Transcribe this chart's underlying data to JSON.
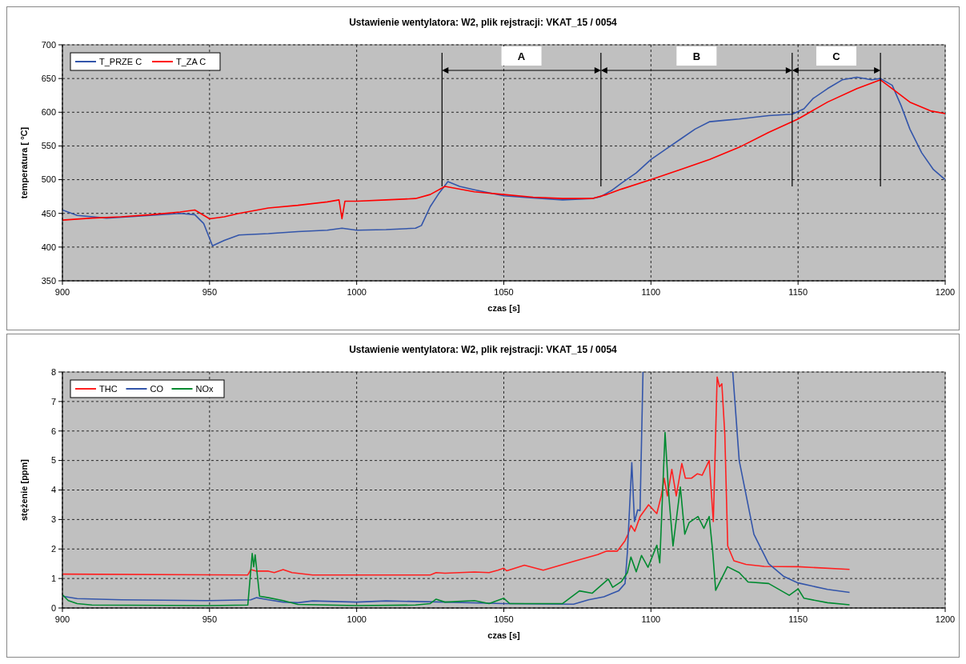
{
  "chart_data": [
    {
      "type": "line",
      "title": "Ustawienie wentylatora: W2, plik rejstracji: VKAT_15 / 0054",
      "xlabel": "czas [s]",
      "ylabel": "temperatura [ °C]",
      "xlim": [
        900,
        1200
      ],
      "xticks": [
        900,
        950,
        1000,
        1050,
        1100,
        1150,
        1200
      ],
      "ylim": [
        350,
        700
      ],
      "yticks": [
        350,
        400,
        450,
        500,
        550,
        600,
        650,
        700
      ],
      "grid": true,
      "legend": "top left",
      "line_style": "solid",
      "marker": "none",
      "ref_lines": [
        {
          "axis": "x",
          "value": 1029
        },
        {
          "axis": "x",
          "value": 1083
        },
        {
          "axis": "x",
          "value": 1148
        },
        {
          "axis": "x",
          "value": 1178
        }
      ],
      "annotations": [
        "A",
        "B",
        "C"
      ],
      "series": [
        {
          "name": "T_PRZE C",
          "color": "#3355aa",
          "x": [
            900,
            905,
            915,
            930,
            940,
            945,
            948,
            951,
            955,
            960,
            970,
            980,
            990,
            995,
            1000,
            1010,
            1020,
            1022,
            1025,
            1028,
            1031,
            1035,
            1040,
            1050,
            1060,
            1070,
            1080,
            1083,
            1087,
            1090,
            1095,
            1100,
            1105,
            1110,
            1115,
            1120,
            1125,
            1130,
            1140,
            1148,
            1152,
            1155,
            1160,
            1165,
            1170,
            1175,
            1178,
            1182,
            1185,
            1188,
            1192,
            1196,
            1200
          ],
          "values": [
            455,
            447,
            443,
            447,
            450,
            448,
            435,
            402,
            410,
            418,
            420,
            423,
            425,
            428,
            425,
            426,
            428,
            432,
            460,
            480,
            497,
            490,
            485,
            476,
            473,
            470,
            472,
            475,
            485,
            495,
            510,
            530,
            545,
            560,
            575,
            586,
            588,
            590,
            595,
            597,
            605,
            620,
            635,
            648,
            652,
            648,
            650,
            640,
            610,
            575,
            540,
            515,
            500
          ]
        },
        {
          "name": "T_ZA C",
          "color": "#ff0000",
          "x": [
            900,
            910,
            920,
            930,
            940,
            945,
            950,
            955,
            960,
            970,
            980,
            990,
            994,
            995,
            996,
            1000,
            1010,
            1020,
            1025,
            1030,
            1040,
            1050,
            1060,
            1070,
            1080,
            1085,
            1090,
            1100,
            1110,
            1120,
            1130,
            1140,
            1150,
            1160,
            1170,
            1178,
            1182,
            1188,
            1195,
            1200
          ],
          "values": [
            440,
            443,
            445,
            448,
            452,
            455,
            442,
            445,
            450,
            458,
            462,
            467,
            470,
            442,
            468,
            468,
            470,
            472,
            478,
            490,
            482,
            478,
            474,
            472,
            472,
            478,
            486,
            500,
            515,
            530,
            548,
            570,
            590,
            615,
            635,
            648,
            635,
            615,
            602,
            598
          ]
        }
      ]
    },
    {
      "type": "line",
      "title": "Ustawienie wentylatora: W2, plik rejstracji: VKAT_15 / 0054",
      "xlabel": "czas [s]",
      "ylabel": "stężenie [ppm]",
      "xlim": [
        900,
        1200
      ],
      "xticks": [
        900,
        950,
        1000,
        1050,
        1100,
        1150,
        1200
      ],
      "ylim": [
        0,
        8
      ],
      "yticks": [
        0,
        1,
        2,
        3,
        4,
        5,
        6,
        7,
        8
      ],
      "grid": true,
      "legend": "top left",
      "line_style": "solid",
      "marker": "none",
      "series": [
        {
          "name": "THC",
          "color": "#ff2020",
          "x": [
            900,
            963,
            964,
            966,
            970,
            972,
            975,
            978,
            985,
            1000,
            1025,
            1027,
            1030,
            1040,
            1045,
            1048,
            1050,
            1051,
            1057,
            1063.4,
            1073.7,
            1081.9,
            1085,
            1088.6,
            1091.2,
            1092.2,
            1093.2,
            1094.5,
            1096.3,
            1099.2,
            1102,
            1103.5,
            1104.5,
            1105.6,
            1107.1,
            1108.6,
            1110.5,
            1111.7,
            1113.8,
            1115.8,
            1117.4,
            1119.8,
            1121.2,
            1122.5,
            1123.3,
            1124.1,
            1125.1,
            1126.1,
            1128.2,
            1132.3,
            1138.5,
            1150,
            1167.5
          ],
          "values": [
            1.15,
            1.12,
            1.3,
            1.25,
            1.25,
            1.2,
            1.3,
            1.2,
            1.12,
            1.12,
            1.12,
            1.2,
            1.18,
            1.22,
            1.2,
            1.28,
            1.35,
            1.26,
            1.45,
            1.28,
            1.58,
            1.81,
            1.93,
            1.93,
            2.28,
            2.5,
            2.8,
            2.6,
            3.1,
            3.5,
            3.2,
            3.8,
            4.4,
            3.8,
            4.7,
            3.8,
            4.9,
            4.4,
            4.4,
            4.55,
            4.5,
            5.0,
            2.93,
            7.83,
            7.5,
            7.6,
            5.9,
            2.1,
            1.6,
            1.48,
            1.41,
            1.4,
            1.31
          ]
        },
        {
          "name": "CO",
          "color": "#3355aa",
          "x": [
            900,
            905,
            920,
            950,
            964,
            966,
            970,
            975,
            980,
            985,
            1000,
            1010,
            1030,
            1050,
            1073.7,
            1078.8,
            1084,
            1089,
            1091.2,
            1092,
            1093.5,
            1094.4,
            1095.5,
            1096.3,
            1097.3,
            1110,
            1127.8,
            1130,
            1135,
            1140,
            1145,
            1150,
            1160,
            1167.5
          ],
          "values": [
            0.4,
            0.32,
            0.28,
            0.25,
            0.28,
            0.35,
            0.28,
            0.2,
            0.18,
            0.24,
            0.2,
            0.24,
            0.2,
            0.15,
            0.13,
            0.28,
            0.38,
            0.58,
            0.83,
            1.9,
            4.93,
            2.93,
            3.33,
            3.3,
            8,
            null,
            8,
            5.0,
            2.5,
            1.5,
            1.08,
            0.85,
            0.63,
            0.53
          ]
        },
        {
          "name": "NOx",
          "color": "#008a30",
          "x": [
            900,
            902,
            905,
            910,
            950,
            963,
            964.5,
            965,
            965.5,
            967,
            970,
            975,
            980,
            1000,
            1020,
            1025,
            1027,
            1030,
            1040,
            1045,
            1050,
            1052,
            1060,
            1070,
            1075.7,
            1080,
            1085.5,
            1087,
            1090,
            1092,
            1093.2,
            1095,
            1096.8,
            1099,
            1102,
            1103,
            1104.8,
            1106,
            1107.5,
            1110,
            1111.5,
            1113,
            1116,
            1118,
            1119.8,
            1121,
            1122,
            1124,
            1126,
            1130,
            1133,
            1140,
            1147,
            1150,
            1152,
            1160,
            1167.5
          ],
          "values": [
            0.45,
            0.25,
            0.15,
            0.1,
            0.08,
            0.1,
            1.85,
            1.4,
            1.8,
            0.4,
            0.35,
            0.25,
            0.12,
            0.08,
            0.1,
            0.15,
            0.3,
            0.2,
            0.25,
            0.15,
            0.33,
            0.15,
            0.15,
            0.15,
            0.58,
            0.5,
            0.98,
            0.7,
            0.9,
            1.2,
            1.73,
            1.23,
            1.78,
            1.38,
            2.13,
            1.53,
            5.95,
            3.9,
            2.1,
            4.1,
            2.5,
            2.9,
            3.1,
            2.7,
            3.1,
            1.9,
            0.6,
            1.0,
            1.4,
            1.2,
            0.88,
            0.83,
            0.43,
            0.65,
            0.33,
            0.18,
            0.11
          ]
        }
      ]
    }
  ]
}
